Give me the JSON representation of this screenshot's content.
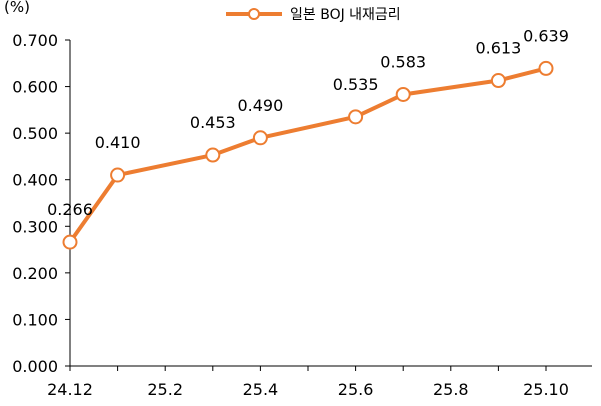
{
  "chart_data": {
    "type": "line",
    "unit_label": "(%)",
    "x": [
      "24.12",
      "25.1",
      "25.2",
      "25.3",
      "25.4",
      "25.5",
      "25.6",
      "25.7",
      "25.8",
      "25.9",
      "25.10"
    ],
    "x_tick_labels": [
      "24.12",
      "25.2",
      "25.4",
      "25.6",
      "25.8",
      "25.10"
    ],
    "y_tick_labels": [
      "0.000",
      "0.100",
      "0.200",
      "0.300",
      "0.400",
      "0.500",
      "0.600",
      "0.700"
    ],
    "ylim": [
      0,
      0.7
    ],
    "grid": false,
    "legend_position": "top-center",
    "series": [
      {
        "name": "일본 BOJ 내재금리",
        "color": "#ED7D31",
        "points": [
          {
            "x": "24.12",
            "y": 0.266,
            "label": "0.266"
          },
          {
            "x": "25.1",
            "y": 0.41,
            "label": "0.410"
          },
          {
            "x": "25.3",
            "y": 0.453,
            "label": "0.453"
          },
          {
            "x": "25.4",
            "y": 0.49,
            "label": "0.490"
          },
          {
            "x": "25.6",
            "y": 0.535,
            "label": "0.535"
          },
          {
            "x": "25.7",
            "y": 0.583,
            "label": "0.583"
          },
          {
            "x": "25.9",
            "y": 0.613,
            "label": "0.613"
          },
          {
            "x": "25.10",
            "y": 0.639,
            "label": "0.639"
          }
        ]
      }
    ]
  }
}
